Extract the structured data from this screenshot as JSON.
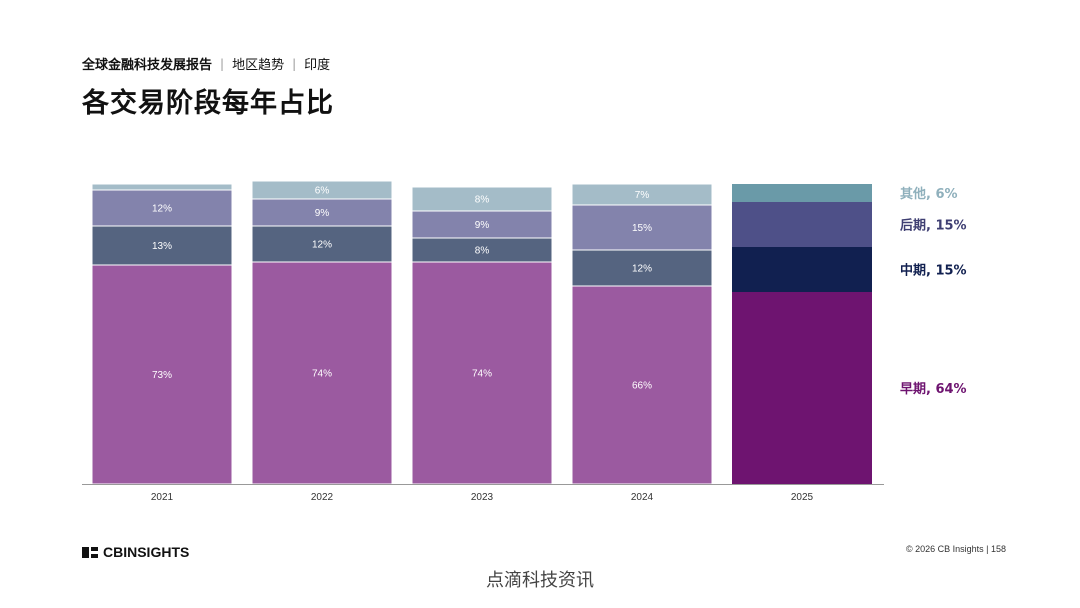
{
  "header": {
    "breadcrumb_main": "全球金融科技发展报告",
    "breadcrumb_sep1": "|",
    "breadcrumb_region": "地区趋势",
    "breadcrumb_sep2": "|",
    "breadcrumb_country": "印度",
    "title": "各交易阶段每年占比"
  },
  "chart_data": {
    "type": "bar",
    "stacked": true,
    "categories": [
      "2021",
      "2022",
      "2023",
      "2024",
      "2025"
    ],
    "ylim": [
      0,
      100
    ],
    "series": [
      {
        "name": "早期",
        "values": [
          73,
          74,
          74,
          66,
          64
        ]
      },
      {
        "name": "中期",
        "values": [
          13,
          12,
          8,
          12,
          15
        ]
      },
      {
        "name": "后期",
        "values": [
          12,
          9,
          9,
          15,
          15
        ]
      },
      {
        "name": "其他",
        "values": [
          2,
          6,
          8,
          7,
          6
        ]
      }
    ],
    "data_labels": [
      [
        "73%",
        "13%",
        "12%",
        ""
      ],
      [
        "74%",
        "12%",
        "9%",
        "6%"
      ],
      [
        "74%",
        "8%",
        "9%",
        "8%"
      ],
      [
        "66%",
        "12%",
        "15%",
        "7%"
      ],
      [
        "",
        "",
        "",
        ""
      ]
    ],
    "legend_labels": [
      "早期, 64%",
      "中期, 15%",
      "后期, 15%",
      "其他, 6%"
    ],
    "legend_position": "right",
    "colors": {
      "default": [
        "#9b5aa0",
        "#556480",
        "#8383ac",
        "#a4bcc8"
      ],
      "highlight": [
        "#6e1470",
        "#112050",
        "#4e5088",
        "#6a9aa8"
      ],
      "legend_text": [
        "#6e1470",
        "#112050",
        "#3e3e72",
        "#8fb0bc"
      ]
    },
    "highlight_index": 4
  },
  "footer": {
    "logo": "CBINSIGHTS",
    "copyright": "© 2026 CB Insights  |  158"
  },
  "watermark": "点滴科技资讯"
}
